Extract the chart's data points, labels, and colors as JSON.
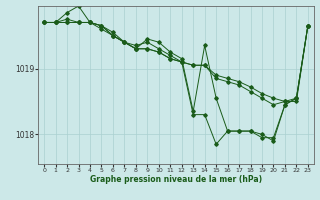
{
  "xlabel": "Graphe pression niveau de la mer (hPa)",
  "ylabel": "",
  "bg_color": "#cce8e8",
  "line_color": "#1a5c1a",
  "grid_color": "#aad0d0",
  "ylim": [
    1017.55,
    1019.95
  ],
  "xlim": [
    -0.5,
    23.5
  ],
  "yticks": [
    1018,
    1019
  ],
  "xticks": [
    0,
    1,
    2,
    3,
    4,
    5,
    6,
    7,
    8,
    9,
    10,
    11,
    12,
    13,
    14,
    15,
    16,
    17,
    18,
    19,
    20,
    21,
    22,
    23
  ],
  "series": [
    [
      1019.7,
      1019.7,
      1019.75,
      1019.7,
      1019.7,
      1019.65,
      1019.5,
      1019.4,
      1019.3,
      1019.3,
      1019.25,
      1019.15,
      1019.1,
      1018.3,
      1018.3,
      1017.85,
      1018.05,
      1018.05,
      1018.05,
      1018.0,
      1017.9,
      1018.45,
      1018.55,
      1019.65
    ],
    [
      1019.7,
      1019.7,
      1019.7,
      1019.7,
      1019.7,
      1019.65,
      1019.55,
      1019.4,
      1019.3,
      1019.3,
      1019.25,
      1019.15,
      1019.1,
      1019.05,
      1019.05,
      1018.9,
      1018.85,
      1018.8,
      1018.72,
      1018.62,
      1018.55,
      1018.5,
      1018.5,
      1019.65
    ],
    [
      1019.7,
      1019.7,
      1019.85,
      1019.95,
      1019.7,
      1019.6,
      1019.5,
      1019.4,
      1019.3,
      1019.45,
      1019.4,
      1019.25,
      1019.15,
      1018.35,
      1019.35,
      1018.55,
      1018.05,
      1018.05,
      1018.05,
      1017.95,
      1017.95,
      1018.45,
      1018.55,
      1019.65
    ],
    [
      1019.7,
      1019.7,
      1019.7,
      1019.7,
      1019.7,
      1019.65,
      1019.5,
      1019.4,
      1019.35,
      1019.4,
      1019.3,
      1019.2,
      1019.1,
      1019.05,
      1019.05,
      1018.85,
      1018.8,
      1018.75,
      1018.65,
      1018.55,
      1018.45,
      1018.5,
      1018.55,
      1019.65
    ]
  ]
}
